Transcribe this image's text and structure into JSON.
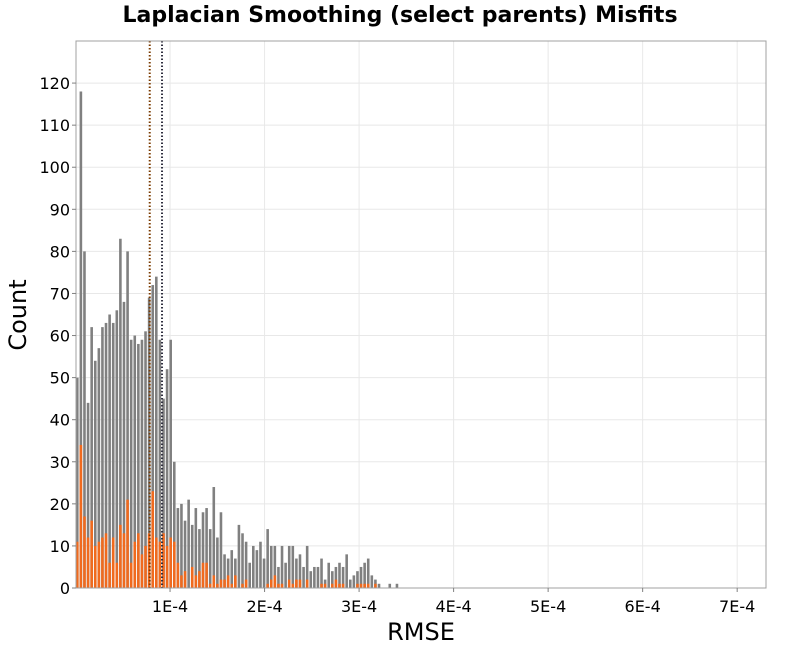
{
  "chart_data": {
    "type": "bar",
    "title": "Laplacian Smoothing (select parents) Misfits",
    "xlabel": "RMSE",
    "ylabel": "Count",
    "xlim": [
      5e-07,
      0.0007305
    ],
    "ylim": [
      0,
      130
    ],
    "bin_width": 3.8e-06,
    "x_ticks": [
      {
        "value": 0.0001,
        "label": "1E-4"
      },
      {
        "value": 0.0002,
        "label": "2E-4"
      },
      {
        "value": 0.0003,
        "label": "3E-4"
      },
      {
        "value": 0.0004,
        "label": "4E-4"
      },
      {
        "value": 0.0005,
        "label": "5E-4"
      },
      {
        "value": 0.0006,
        "label": "6E-4"
      },
      {
        "value": 0.0007,
        "label": "7E-4"
      }
    ],
    "y_ticks": [
      {
        "value": 0,
        "label": "0"
      },
      {
        "value": 10,
        "label": "10"
      },
      {
        "value": 20,
        "label": "20"
      },
      {
        "value": 30,
        "label": "30"
      },
      {
        "value": 40,
        "label": "40"
      },
      {
        "value": 50,
        "label": "50"
      },
      {
        "value": 60,
        "label": "60"
      },
      {
        "value": 70,
        "label": "70"
      },
      {
        "value": 80,
        "label": "80"
      },
      {
        "value": 90,
        "label": "90"
      },
      {
        "value": 100,
        "label": "100"
      },
      {
        "value": 110,
        "label": "110"
      },
      {
        "value": 120,
        "label": "120"
      }
    ],
    "grid": true,
    "legend": "none",
    "series": [
      {
        "color": "#808080",
        "values": [
          50,
          118,
          80,
          44,
          62,
          54,
          57,
          62,
          63,
          65,
          63,
          66,
          83,
          68,
          80,
          59,
          60,
          58,
          59,
          61,
          69,
          72,
          74,
          59,
          45,
          52,
          59,
          30,
          19,
          20,
          16,
          21,
          15,
          19,
          14,
          18,
          19,
          14,
          24,
          12,
          18,
          8,
          7,
          9,
          7,
          15,
          13,
          11,
          6,
          10,
          9,
          11,
          7,
          14,
          10,
          10,
          5,
          10,
          6,
          10,
          10,
          7,
          8,
          5,
          10,
          4,
          5,
          5,
          7,
          2,
          6,
          4,
          5,
          6,
          5,
          8,
          2,
          3,
          4,
          5,
          6,
          7,
          3,
          2,
          1,
          0,
          0,
          1,
          0,
          1,
          0,
          0,
          0,
          0,
          0,
          0,
          0,
          0,
          0,
          0,
          0,
          0,
          0,
          0,
          0,
          0,
          0,
          0,
          0,
          0,
          0,
          0,
          0,
          0,
          0,
          0,
          0,
          0,
          0,
          0,
          0,
          0,
          0,
          0,
          0,
          0,
          0,
          0,
          0,
          0,
          0,
          0,
          0,
          0,
          0,
          0,
          0,
          0,
          0,
          0,
          0,
          0,
          0,
          0,
          0,
          0,
          0,
          0,
          0,
          0,
          0,
          0,
          0,
          0,
          0,
          0,
          0,
          0,
          0,
          0,
          0,
          0,
          0,
          0,
          0,
          0,
          0,
          0,
          0,
          0,
          0,
          0,
          0,
          0,
          0,
          0,
          0,
          0,
          0,
          0,
          0,
          0,
          0,
          0,
          0,
          0,
          0,
          0,
          0,
          0,
          0,
          0,
          0,
          0,
          0,
          0,
          0
        ]
      },
      {
        "color": "#f06a1e",
        "values": [
          11,
          34,
          17,
          12,
          16,
          10,
          11,
          12,
          13,
          6,
          12,
          6,
          15,
          13,
          21,
          6,
          11,
          13,
          8,
          10,
          13,
          23,
          12,
          11,
          13,
          10,
          12,
          11,
          6,
          3,
          4,
          0,
          5,
          3,
          4,
          6,
          6,
          1,
          3,
          1,
          2,
          2,
          3,
          1,
          3,
          0,
          1,
          2,
          0,
          0,
          0,
          0,
          0,
          1,
          2,
          3,
          1,
          1,
          0,
          2,
          1,
          2,
          2,
          0,
          2,
          0,
          0,
          0,
          1,
          1,
          0,
          1,
          2,
          1,
          1,
          0,
          0,
          0,
          1,
          1,
          1,
          1,
          0,
          1,
          0,
          0,
          0,
          0,
          0,
          0,
          0,
          0,
          0,
          0,
          0,
          0,
          0,
          0,
          0,
          0,
          0,
          0,
          0,
          0,
          0,
          0,
          0,
          0,
          0,
          0,
          0,
          0,
          0,
          0,
          0,
          0,
          0,
          0,
          0,
          0,
          0,
          0,
          0,
          0,
          0,
          0,
          0,
          0,
          0,
          0,
          0,
          0,
          0,
          0,
          0,
          0,
          0,
          0,
          0,
          0,
          0,
          0,
          0,
          0,
          0,
          0,
          0,
          0,
          0,
          0,
          0,
          0,
          0,
          0,
          0,
          0,
          0,
          0,
          0,
          0,
          0,
          0,
          0,
          0,
          0,
          0,
          0,
          0,
          0,
          0,
          0,
          0,
          0,
          0,
          0,
          0,
          0,
          0,
          0,
          0,
          0,
          0,
          0,
          0,
          0,
          0,
          0,
          0,
          0,
          0,
          0,
          0,
          0,
          0,
          0,
          0
        ]
      }
    ],
    "reference_lines": [
      {
        "x": 7.85e-05,
        "color": "#7a3a00",
        "style": "dotted"
      },
      {
        "x": 9.15e-05,
        "color": "#303040",
        "style": "dotted"
      }
    ]
  }
}
